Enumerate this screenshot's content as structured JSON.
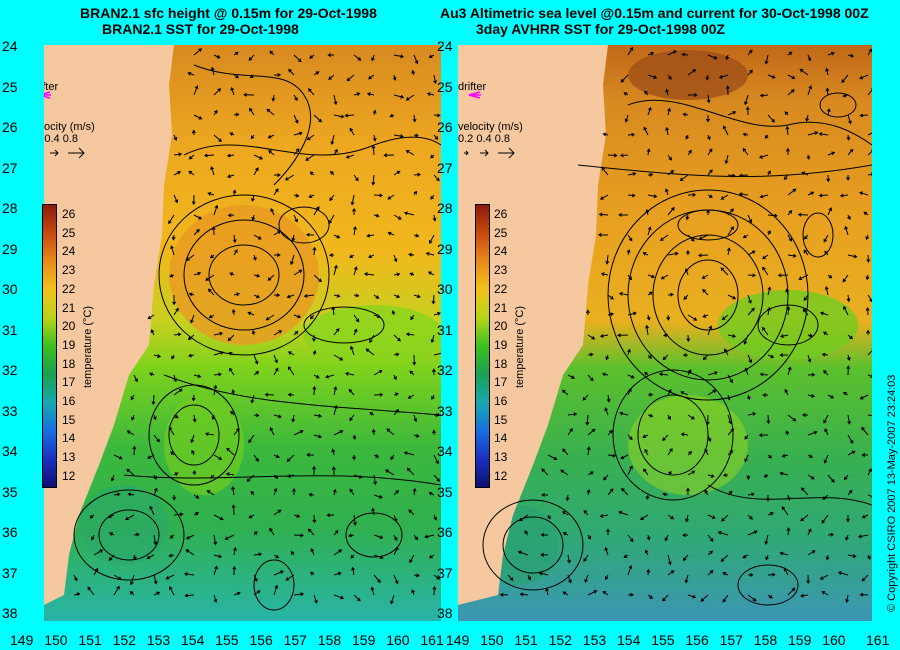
{
  "titles": {
    "left_line1": "BRAN2.1 sfc height @ 0.15m for 29-Oct-1998",
    "left_line2": "BRAN2.1 SST for 29-Oct-1998",
    "right_line1": "Au3 Altimetric sea level  @0.15m and current for 30-Oct-1998 00Z",
    "right_line2": "3day AVHRR SST for 29-Oct-1998 00Z"
  },
  "axes": {
    "y_ticks": [
      "24",
      "25",
      "26",
      "27",
      "28",
      "29",
      "30",
      "31",
      "32",
      "33",
      "34",
      "35",
      "36",
      "37",
      "38"
    ],
    "x_ticks": [
      "149",
      "150",
      "151",
      "152",
      "153",
      "154",
      "155",
      "156",
      "157",
      "158",
      "159",
      "160",
      "161"
    ]
  },
  "legend": {
    "drifter": "drifter",
    "velocity_title": "velocity (m/s)",
    "velocity_values": "0.2 0.4 0.8"
  },
  "colorbar": {
    "ticks": [
      "26",
      "25",
      "24",
      "23",
      "22",
      "21",
      "20",
      "19",
      "18",
      "17",
      "16",
      "15",
      "14",
      "13",
      "12"
    ],
    "title": "temperature (°C)"
  },
  "copyright": "© Copyright CSIRO 2007  13-May-2007 23:24:03",
  "colors": {
    "background": "#00ffff",
    "land": "#f6c8a0",
    "drifter": "#ff00ff"
  }
}
